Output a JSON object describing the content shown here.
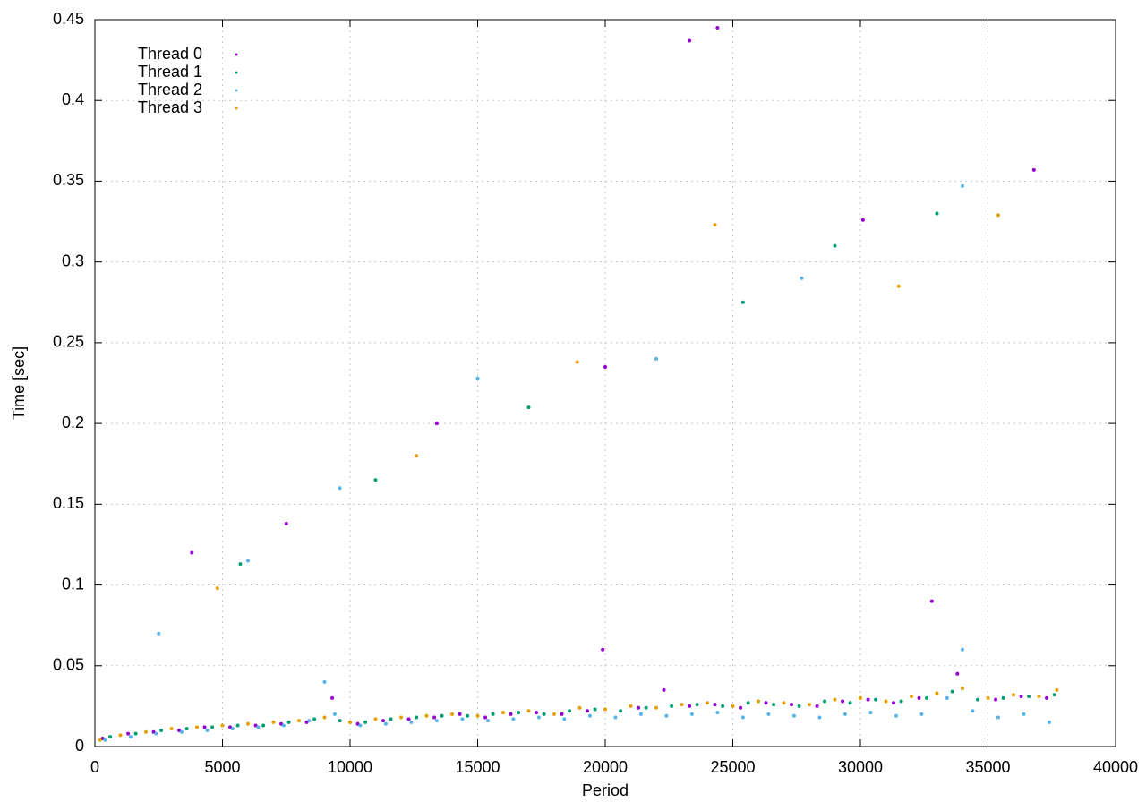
{
  "chart_data": {
    "type": "scatter",
    "x_label": "Period",
    "y_label": "Time [sec]",
    "xlim": [
      0,
      40000
    ],
    "ylim": [
      0,
      0.45
    ],
    "xticks": [
      0,
      5000,
      10000,
      15000,
      20000,
      25000,
      30000,
      35000,
      40000
    ],
    "yticks": [
      0,
      0.05,
      0.1,
      0.15,
      0.2,
      0.25,
      0.3,
      0.35,
      0.4,
      0.45
    ],
    "grid": true,
    "legend": "top-left",
    "series": [
      {
        "name": "Thread 0",
        "color": "#9400d3",
        "x": [
          300,
          1300,
          2300,
          3300,
          4300,
          5300,
          6300,
          7300,
          8300,
          9300,
          10300,
          11300,
          12300,
          13300,
          14300,
          15300,
          16300,
          17300,
          18300,
          19300,
          19900,
          21300,
          22300,
          23300,
          24300,
          25300,
          26300,
          27300,
          28300,
          29300,
          30300,
          31300,
          32300,
          32800,
          33800,
          35300,
          36300,
          37300,
          3800,
          7500,
          13400,
          20000,
          23300,
          24400,
          30100,
          36800
        ],
        "values": [
          0.005,
          0.008,
          0.009,
          0.01,
          0.012,
          0.012,
          0.013,
          0.014,
          0.015,
          0.03,
          0.014,
          0.016,
          0.017,
          0.018,
          0.02,
          0.018,
          0.02,
          0.021,
          0.02,
          0.022,
          0.06,
          0.024,
          0.035,
          0.025,
          0.026,
          0.024,
          0.027,
          0.026,
          0.025,
          0.028,
          0.029,
          0.027,
          0.03,
          0.09,
          0.045,
          0.029,
          0.031,
          0.03,
          0.12,
          0.138,
          0.2,
          0.235,
          0.437,
          0.445,
          0.326,
          0.357
        ]
      },
      {
        "name": "Thread 1",
        "color": "#009e73",
        "x": [
          600,
          1600,
          2600,
          3600,
          4600,
          5600,
          6600,
          7600,
          8600,
          9600,
          10600,
          11600,
          12600,
          13600,
          14600,
          15600,
          16600,
          17600,
          18600,
          19600,
          20600,
          21600,
          22600,
          23600,
          24600,
          25600,
          26600,
          27600,
          28600,
          29600,
          30600,
          31600,
          32600,
          33600,
          34600,
          35600,
          36600,
          37600,
          5700,
          11000,
          17000,
          25400,
          29000,
          33000
        ],
        "values": [
          0.006,
          0.008,
          0.01,
          0.011,
          0.012,
          0.013,
          0.013,
          0.015,
          0.017,
          0.016,
          0.015,
          0.017,
          0.018,
          0.019,
          0.019,
          0.02,
          0.021,
          0.02,
          0.022,
          0.023,
          0.022,
          0.024,
          0.025,
          0.026,
          0.025,
          0.027,
          0.026,
          0.025,
          0.028,
          0.027,
          0.029,
          0.028,
          0.03,
          0.034,
          0.029,
          0.03,
          0.031,
          0.032,
          0.113,
          0.165,
          0.21,
          0.275,
          0.31,
          0.33
        ]
      },
      {
        "name": "Thread 2",
        "color": "#56b4e9",
        "x": [
          400,
          1400,
          2400,
          3400,
          4400,
          5400,
          6400,
          7400,
          8400,
          9000,
          9400,
          10400,
          11400,
          12400,
          13400,
          14400,
          15400,
          16400,
          17400,
          18400,
          19400,
          20400,
          21400,
          22400,
          23400,
          24400,
          25400,
          26400,
          27400,
          28400,
          29400,
          30400,
          31400,
          32400,
          33400,
          34000,
          34400,
          35400,
          36400,
          37400,
          2500,
          6000,
          9600,
          15000,
          22000,
          27700,
          34000
        ],
        "values": [
          0.004,
          0.006,
          0.008,
          0.009,
          0.01,
          0.011,
          0.012,
          0.013,
          0.016,
          0.04,
          0.02,
          0.013,
          0.014,
          0.015,
          0.016,
          0.017,
          0.016,
          0.017,
          0.018,
          0.017,
          0.019,
          0.018,
          0.02,
          0.019,
          0.02,
          0.021,
          0.018,
          0.02,
          0.019,
          0.018,
          0.02,
          0.021,
          0.019,
          0.02,
          0.03,
          0.06,
          0.022,
          0.018,
          0.02,
          0.015,
          0.07,
          0.115,
          0.16,
          0.228,
          0.24,
          0.29,
          0.347
        ]
      },
      {
        "name": "Thread 3",
        "color": "#e69f00",
        "x": [
          200,
          1000,
          2000,
          3000,
          4000,
          5000,
          6000,
          7000,
          8000,
          9000,
          10000,
          11000,
          12000,
          13000,
          14000,
          15000,
          16000,
          17000,
          18000,
          19000,
          20000,
          21000,
          22000,
          23000,
          24000,
          25000,
          26000,
          27000,
          28000,
          29000,
          30000,
          31000,
          32000,
          33000,
          34000,
          35000,
          36000,
          37000,
          37700,
          4800,
          12600,
          18900,
          24300,
          31500,
          35400
        ],
        "values": [
          0.004,
          0.007,
          0.009,
          0.011,
          0.012,
          0.013,
          0.014,
          0.015,
          0.016,
          0.018,
          0.015,
          0.017,
          0.018,
          0.019,
          0.02,
          0.019,
          0.021,
          0.022,
          0.02,
          0.024,
          0.023,
          0.025,
          0.024,
          0.026,
          0.027,
          0.025,
          0.028,
          0.027,
          0.026,
          0.029,
          0.03,
          0.028,
          0.031,
          0.033,
          0.036,
          0.03,
          0.032,
          0.031,
          0.035,
          0.098,
          0.18,
          0.238,
          0.323,
          0.285,
          0.329
        ]
      }
    ]
  }
}
